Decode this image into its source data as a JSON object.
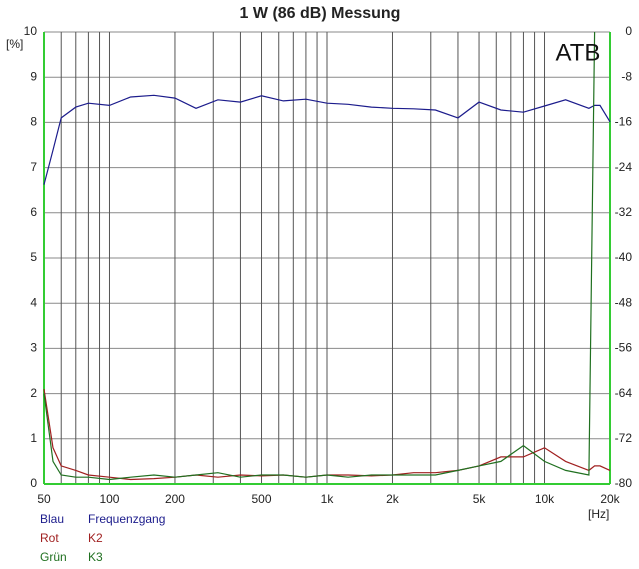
{
  "chart_data": {
    "type": "line",
    "title": "1 W (86 dB) Messung",
    "annotation": "ATB",
    "ylabel": "[%]",
    "xlabel": "[Hz]",
    "log_x": true,
    "grid": true,
    "x": [
      50,
      55,
      60,
      70,
      80,
      100,
      125,
      160,
      200,
      250,
      315,
      400,
      500,
      630,
      800,
      1000,
      1250,
      1600,
      2000,
      2500,
      3150,
      4000,
      5000,
      6300,
      8000,
      10000,
      12500,
      16000,
      17000,
      18000,
      20000
    ],
    "series": [
      {
        "name": "Frequenzgang",
        "color_name": "Blau",
        "color": "#1c1c8c",
        "axis": "y2",
        "values": [
          -27,
          -20.9,
          -15.2,
          -13.3,
          -12.6,
          -13.0,
          -11.5,
          -11.2,
          -11.7,
          -13.5,
          -12.0,
          -12.4,
          -11.3,
          -12.2,
          -11.9,
          -12.6,
          -12.8,
          -13.3,
          -13.5,
          -13.6,
          -13.8,
          -15.2,
          -12.4,
          -13.8,
          -14.2,
          -13.1,
          -12.0,
          -13.5,
          -13.0,
          -13.0,
          -15.9
        ]
      },
      {
        "name": "K2",
        "color_name": "Rot",
        "color": "#a02020",
        "values": [
          2.1,
          0.8,
          0.4,
          0.3,
          0.2,
          0.15,
          0.1,
          0.12,
          0.15,
          0.2,
          0.15,
          0.2,
          0.18,
          0.2,
          0.15,
          0.2,
          0.2,
          0.18,
          0.2,
          0.25,
          0.25,
          0.3,
          0.4,
          0.6,
          0.6,
          0.8,
          0.5,
          0.3,
          0.4,
          0.4,
          0.3
        ]
      },
      {
        "name": "K3",
        "color_name": "Grün",
        "color": "#207020",
        "values": [
          2.0,
          0.5,
          0.2,
          0.15,
          0.15,
          0.1,
          0.15,
          0.2,
          0.15,
          0.2,
          0.25,
          0.15,
          0.2,
          0.2,
          0.15,
          0.2,
          0.15,
          0.2,
          0.2,
          0.2,
          0.2,
          0.3,
          0.4,
          0.5,
          0.85,
          0.5,
          0.3,
          0.2,
          10,
          null,
          null
        ]
      }
    ],
    "xlim": [
      50,
      20000
    ],
    "xticks": [
      50,
      100,
      200,
      500,
      {
        "value": 1000,
        "label": "1k"
      },
      {
        "value": 2000,
        "label": "2k"
      },
      {
        "value": 5000,
        "label": "5k"
      },
      {
        "value": 10000,
        "label": "10k"
      },
      {
        "value": 20000,
        "label": "20k"
      }
    ],
    "xgrid": [
      60,
      70,
      80,
      90,
      300,
      400,
      600,
      700,
      800,
      900,
      3000,
      4000,
      6000,
      7000,
      8000,
      9000
    ],
    "ylim": [
      0,
      10
    ],
    "yticks": [
      0,
      1,
      2,
      3,
      4,
      5,
      6,
      7,
      8,
      9,
      10
    ],
    "y2lim": [
      -80,
      0
    ],
    "y2ticks": [
      0,
      -8,
      -16,
      -24,
      -32,
      -40,
      -48,
      -56,
      -64,
      -72,
      -80
    ]
  }
}
